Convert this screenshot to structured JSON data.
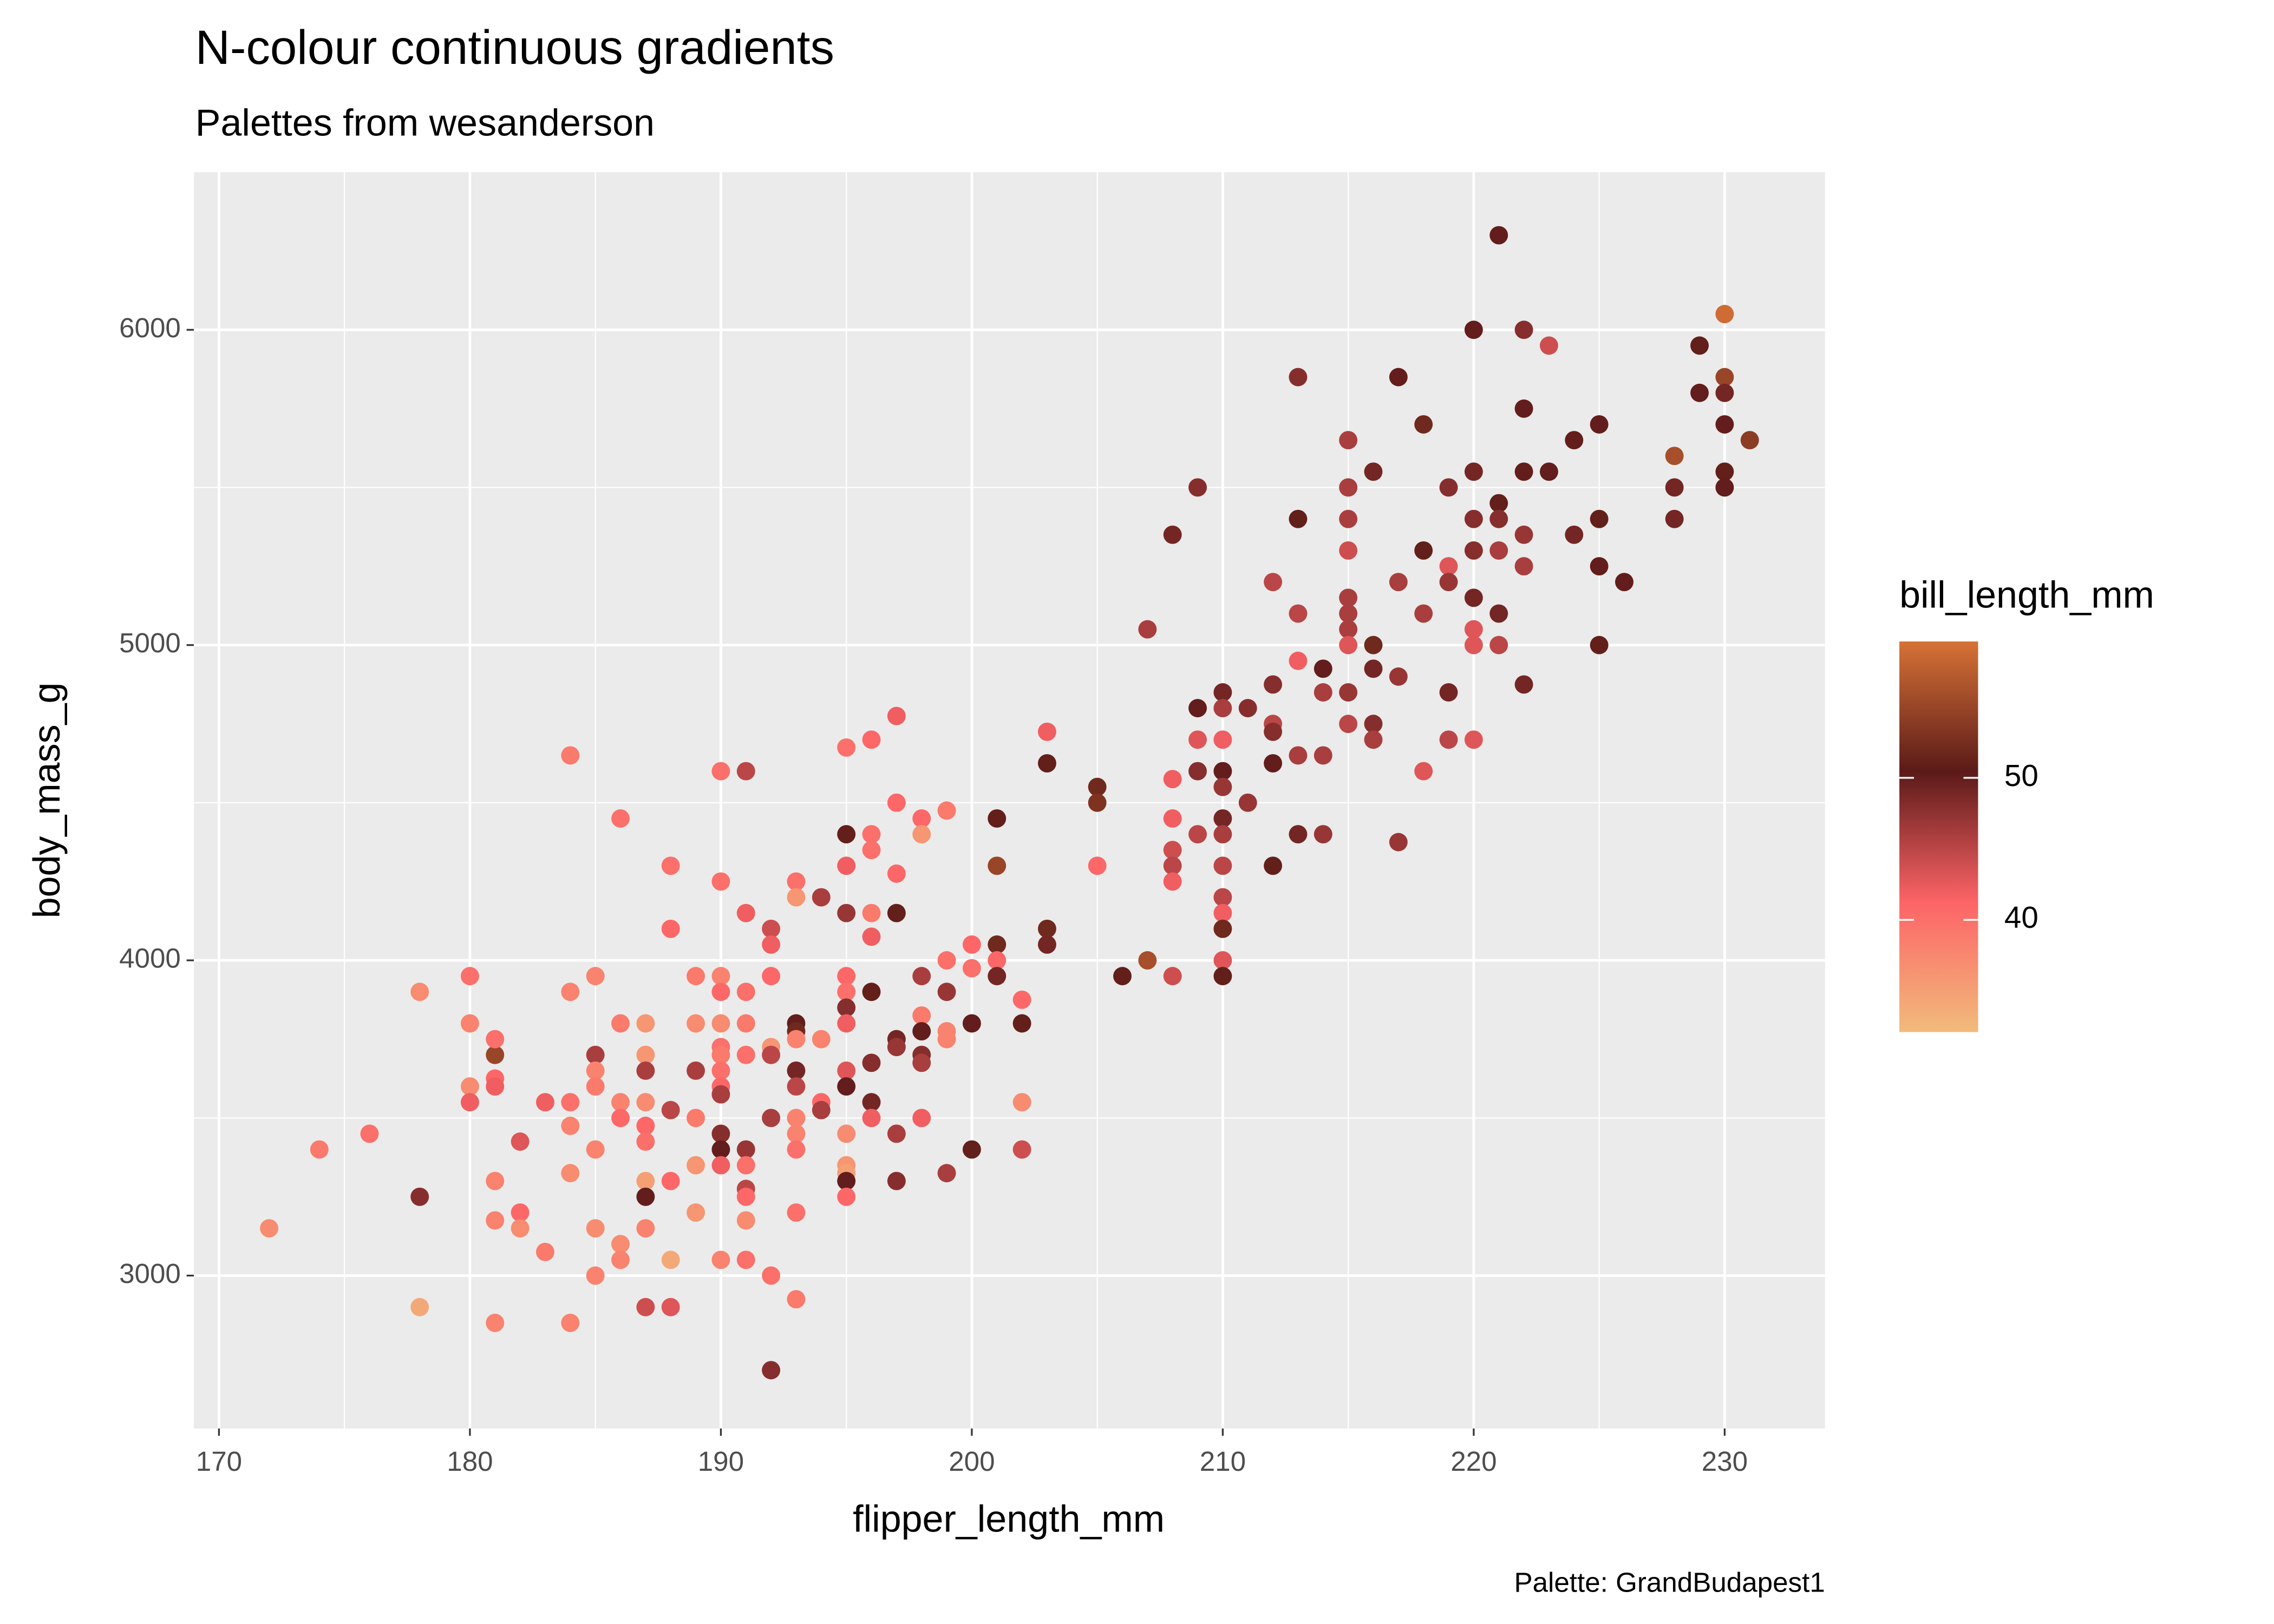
{
  "chart_data": {
    "type": "scatter",
    "title": "N-colour continuous gradients",
    "subtitle": "Palettes from wesanderson",
    "xlabel": "flipper_length_mm",
    "ylabel": "body_mass_g",
    "caption": "Palette: GrandBudapest1",
    "xlim": [
      169,
      234
    ],
    "ylim": [
      2515,
      6500
    ],
    "xticks": [
      170,
      180,
      190,
      200,
      210,
      220,
      230
    ],
    "yticks": [
      3000,
      4000,
      5000,
      6000
    ],
    "x_minor_grid": [
      175,
      185,
      195,
      205,
      215,
      225
    ],
    "y_minor_grid": [
      3500,
      4500,
      5500
    ],
    "grid": true,
    "color_scale": {
      "name": "bill_length_mm",
      "limits": [
        32.1,
        59.6
      ],
      "colors": [
        "#F1BB7B",
        "#FD6467",
        "#5B1A18",
        "#D67236"
      ],
      "ticks": [
        40,
        50
      ]
    },
    "x": [
      172,
      174,
      176,
      178,
      178,
      178,
      180,
      180,
      180,
      180,
      181,
      181,
      181,
      181,
      181,
      181,
      181,
      182,
      182,
      182,
      183,
      183,
      184,
      184,
      184,
      184,
      184,
      184,
      185,
      185,
      185,
      185,
      185,
      185,
      185,
      186,
      186,
      186,
      186,
      186,
      186,
      187,
      187,
      187,
      187,
      187,
      187,
      187,
      187,
      187,
      187,
      188,
      188,
      188,
      188,
      188,
      188,
      189,
      189,
      189,
      189,
      189,
      189,
      190,
      190,
      190,
      190,
      190,
      190,
      190,
      190,
      190,
      190,
      190,
      190,
      190,
      190,
      191,
      191,
      191,
      191,
      191,
      191,
      191,
      191,
      191,
      191,
      191,
      192,
      192,
      192,
      192,
      192,
      192,
      192,
      192,
      193,
      193,
      193,
      193,
      193,
      193,
      193,
      193,
      193,
      193,
      193,
      193,
      194,
      194,
      194,
      194,
      195,
      195,
      195,
      195,
      195,
      195,
      195,
      195,
      195,
      195,
      195,
      195,
      195,
      195,
      195,
      196,
      196,
      196,
      196,
      196,
      196,
      196,
      196,
      196,
      197,
      197,
      197,
      197,
      197,
      197,
      197,
      197,
      198,
      198,
      198,
      198,
      198,
      198,
      198,
      198,
      199,
      199,
      199,
      199,
      199,
      199,
      200,
      200,
      200,
      200,
      201,
      201,
      201,
      201,
      201,
      202,
      202,
      202,
      202,
      203,
      203,
      203,
      203,
      205,
      205,
      205,
      206,
      207,
      207,
      208,
      208,
      208,
      208,
      208,
      208,
      208,
      209,
      209,
      209,
      209,
      209,
      210,
      210,
      210,
      210,
      210,
      210,
      210,
      210,
      210,
      210,
      210,
      210,
      210,
      211,
      211,
      212,
      212,
      212,
      212,
      212,
      212,
      213,
      213,
      213,
      213,
      213,
      213,
      214,
      214,
      214,
      214,
      215,
      215,
      215,
      215,
      215,
      215,
      215,
      215,
      215,
      215,
      216,
      216,
      216,
      216,
      216,
      217,
      217,
      217,
      217,
      218,
      218,
      218,
      218,
      219,
      219,
      219,
      219,
      219,
      220,
      220,
      220,
      220,
      220,
      220,
      220,
      220,
      221,
      221,
      221,
      221,
      221,
      221,
      222,
      222,
      222,
      222,
      222,
      222,
      223,
      223,
      224,
      224,
      225,
      225,
      225,
      225,
      226,
      228,
      228,
      228,
      229,
      229,
      230,
      230,
      230,
      230,
      230,
      230,
      231
    ],
    "values": [
      3150,
      3400,
      3450,
      3900,
      2900,
      3250,
      3950,
      3800,
      3600,
      3550,
      3700,
      3750,
      3625,
      3600,
      3300,
      3175,
      2850,
      3425,
      3200,
      3150,
      3550,
      3075,
      4650,
      3900,
      3550,
      3475,
      3325,
      2850,
      3950,
      3700,
      3650,
      3600,
      3400,
      3150,
      3000,
      4450,
      3800,
      3550,
      3500,
      3100,
      3050,
      3800,
      3700,
      3650,
      3550,
      3475,
      3425,
      3300,
      3250,
      3150,
      2900,
      4300,
      4100,
      3525,
      3300,
      3050,
      2900,
      3950,
      3800,
      3650,
      3500,
      3350,
      3200,
      4600,
      4250,
      3950,
      3900,
      3800,
      3725,
      3700,
      3650,
      3600,
      3575,
      3450,
      3400,
      3350,
      3050,
      4600,
      4150,
      3900,
      3800,
      3700,
      3400,
      3350,
      3275,
      3250,
      3175,
      3050,
      4100,
      4050,
      3950,
      3725,
      3700,
      3500,
      3000,
      2700,
      4250,
      4200,
      3800,
      3775,
      3750,
      3650,
      3600,
      3500,
      3450,
      3400,
      3200,
      2925,
      4200,
      3750,
      3550,
      3525,
      4675,
      4400,
      4300,
      4150,
      3950,
      3900,
      3850,
      3800,
      3650,
      3600,
      3450,
      3350,
      3325,
      3300,
      3250,
      4700,
      4400,
      4350,
      4150,
      4075,
      3900,
      3675,
      3550,
      3500,
      4775,
      4500,
      4275,
      4150,
      3750,
      3725,
      3450,
      3300,
      4450,
      4400,
      3950,
      3825,
      3775,
      3700,
      3675,
      3500,
      4475,
      4000,
      3900,
      3775,
      3750,
      3325,
      4050,
      3975,
      3800,
      3400,
      4450,
      4300,
      4050,
      4000,
      3950,
      3875,
      3800,
      3550,
      3400,
      4725,
      4625,
      4100,
      4050,
      4550,
      4500,
      4300,
      3950,
      5050,
      4000,
      5350,
      4575,
      4450,
      4350,
      4300,
      4250,
      3950,
      5500,
      4800,
      4700,
      4600,
      4400,
      4850,
      4800,
      4700,
      4600,
      4550,
      4450,
      4400,
      4300,
      4200,
      4150,
      4100,
      4000,
      3950,
      4800,
      4500,
      5200,
      4875,
      4750,
      4725,
      4625,
      4300,
      5850,
      5400,
      5100,
      4950,
      4650,
      4400,
      4925,
      4850,
      4650,
      4400,
      5650,
      5500,
      5400,
      5300,
      5150,
      5100,
      5050,
      5000,
      4850,
      4750,
      5550,
      5000,
      4925,
      4750,
      4700,
      5850,
      5200,
      4900,
      4375,
      5700,
      5300,
      5100,
      4600,
      5500,
      5250,
      5200,
      4850,
      4700,
      6000,
      5550,
      5400,
      5300,
      5150,
      5050,
      5000,
      4700,
      6300,
      5450,
      5400,
      5300,
      5100,
      5000,
      6000,
      5750,
      5550,
      5350,
      5250,
      4875,
      5950,
      5550,
      5650,
      5350,
      5700,
      5400,
      5250,
      5000,
      5200,
      5600,
      5500,
      5400,
      5950,
      5800,
      6050,
      5850,
      5800,
      5700,
      5550,
      5500,
      5650
    ],
    "color_values": [
      37,
      39,
      40,
      37,
      34,
      48,
      40,
      38,
      37,
      42,
      55,
      40,
      41,
      42,
      38,
      38,
      38,
      43,
      41,
      37,
      42,
      39,
      39,
      38,
      40,
      38,
      37,
      38,
      38,
      46,
      38,
      39,
      38,
      37,
      38,
      40,
      39,
      38,
      41,
      37,
      38,
      36,
      36,
      46,
      37,
      41,
      40,
      35,
      50,
      38,
      44,
      40,
      41,
      45,
      41,
      34,
      43,
      39,
      37,
      46,
      39,
      36,
      36,
      40,
      40,
      38,
      41,
      37,
      40,
      39,
      40,
      41,
      46,
      48,
      50,
      42,
      38,
      45,
      42,
      40,
      39,
      40,
      47,
      40,
      45,
      41,
      37,
      40,
      44,
      42,
      41,
      36,
      45,
      46,
      40,
      48,
      40,
      36,
      50,
      52,
      38,
      49,
      45,
      38,
      38,
      40,
      40,
      39,
      46,
      38,
      41,
      46,
      40,
      51,
      42,
      47,
      41,
      40,
      48,
      42,
      43,
      50,
      37,
      36,
      35,
      50,
      41,
      41,
      40,
      40,
      39,
      42,
      51,
      48,
      49,
      42,
      42,
      41,
      41,
      51,
      49,
      47,
      46,
      48,
      41,
      36,
      46,
      39,
      50,
      48,
      46,
      42,
      39,
      40,
      47,
      38,
      38,
      46,
      41,
      40,
      50,
      51,
      51,
      55,
      52,
      41,
      49,
      41,
      51,
      37,
      44,
      42,
      51,
      52,
      49,
      52,
      53,
      41,
      51,
      46,
      56,
      49,
      42,
      42,
      44,
      45,
      42,
      44,
      48,
      50,
      43,
      48,
      45,
      49,
      46,
      42,
      50,
      47,
      49,
      46,
      45,
      45,
      42,
      52,
      43,
      51,
      48,
      47,
      45,
      48,
      45,
      48,
      50,
      51,
      48,
      51,
      45,
      42,
      46,
      49,
      50,
      46,
      46,
      47,
      46,
      46,
      46,
      44,
      46,
      46,
      46,
      43,
      47,
      45,
      49,
      52,
      49,
      48,
      46,
      50,
      46,
      47,
      47,
      52,
      51,
      46,
      43,
      48,
      43,
      47,
      49,
      45,
      50,
      49,
      48,
      48,
      49,
      43,
      43,
      43,
      50,
      51,
      48,
      46,
      49,
      45,
      48,
      50,
      50,
      47,
      46,
      49,
      44,
      50,
      50,
      49,
      50,
      51,
      50,
      51,
      50,
      56,
      49,
      49,
      51,
      50,
      59,
      55,
      49,
      50,
      51,
      50,
      54
    ]
  }
}
